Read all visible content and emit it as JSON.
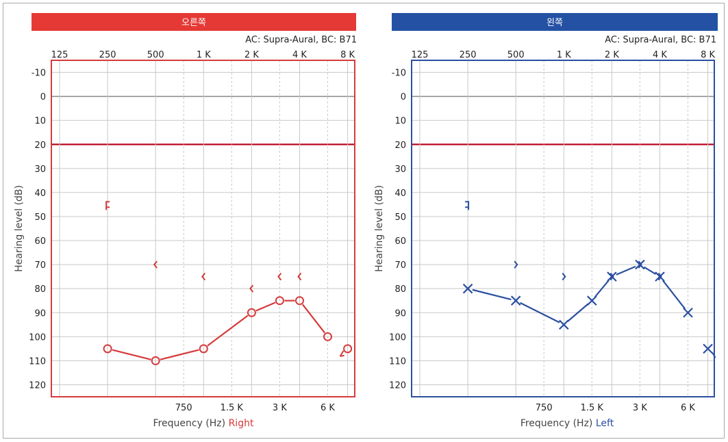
{
  "chart_data": [
    {
      "type": "line",
      "header": "오른쪽",
      "subtitle": "AC: Supra-Aural, BC: B71",
      "ylabel": "Hearing level (dB)",
      "xlabel": "Frequency (Hz)",
      "xlabel_side": "Right",
      "ylim": [
        -15,
        125
      ],
      "y_reversed": true,
      "y_ticks": [
        "-10",
        "0",
        "10",
        "20",
        "30",
        "40",
        "50",
        "60",
        "70",
        "80",
        "90",
        "100",
        "110",
        "120"
      ],
      "x_top_ticks": [
        {
          "f": 125,
          "label": "125"
        },
        {
          "f": 250,
          "label": "250"
        },
        {
          "f": 500,
          "label": "500"
        },
        {
          "f": 1000,
          "label": "1 K"
        },
        {
          "f": 2000,
          "label": "2 K"
        },
        {
          "f": 4000,
          "label": "4 K"
        },
        {
          "f": 8000,
          "label": "8 K"
        }
      ],
      "x_bottom_ticks": [
        {
          "f": 750,
          "label": "750"
        },
        {
          "f": 1500,
          "label": "1.5 K"
        },
        {
          "f": 3000,
          "label": "3 K"
        },
        {
          "f": 6000,
          "label": "6 K"
        }
      ],
      "reference_line": 20,
      "ear_color": "#d63a3a",
      "series": [
        {
          "marker": "circle",
          "points": [
            {
              "x": 250,
              "y": 105
            },
            {
              "x": 500,
              "y": 110
            },
            {
              "x": 1000,
              "y": 105
            },
            {
              "x": 2000,
              "y": 90
            },
            {
              "x": 3000,
              "y": 85
            },
            {
              "x": 4000,
              "y": 85
            },
            {
              "x": 6000,
              "y": 100
            },
            {
              "x": 8000,
              "y": 105
            }
          ],
          "no_response_at": [
            8000
          ]
        },
        {
          "marker": "bone-right",
          "points": [
            {
              "x": 250,
              "y": 45
            },
            {
              "x": 500,
              "y": 70
            },
            {
              "x": 1000,
              "y": 75
            },
            {
              "x": 2000,
              "y": 80
            },
            {
              "x": 3000,
              "y": 75
            },
            {
              "x": 4000,
              "y": 75
            }
          ]
        }
      ]
    },
    {
      "type": "line",
      "header": "왼쪽",
      "subtitle": "AC: Supra-Aural, BC: B71",
      "ylabel": "Hearing level (dB)",
      "xlabel": "Frequency (Hz)",
      "xlabel_side": "Left",
      "ylim": [
        -15,
        125
      ],
      "y_reversed": true,
      "y_ticks": [
        "-10",
        "0",
        "10",
        "20",
        "30",
        "40",
        "50",
        "60",
        "70",
        "80",
        "90",
        "100",
        "110",
        "120"
      ],
      "x_top_ticks": [
        {
          "f": 125,
          "label": "125"
        },
        {
          "f": 250,
          "label": "250"
        },
        {
          "f": 500,
          "label": "500"
        },
        {
          "f": 1000,
          "label": "1 K"
        },
        {
          "f": 2000,
          "label": "2 K"
        },
        {
          "f": 4000,
          "label": "4 K"
        },
        {
          "f": 8000,
          "label": "8 K"
        }
      ],
      "x_bottom_ticks": [
        {
          "f": 750,
          "label": "750"
        },
        {
          "f": 1500,
          "label": "1.5 K"
        },
        {
          "f": 3000,
          "label": "3 K"
        },
        {
          "f": 6000,
          "label": "6 K"
        }
      ],
      "reference_line": 20,
      "ear_color": "#2b4fa0",
      "series": [
        {
          "marker": "x",
          "points": [
            {
              "x": 250,
              "y": 80
            },
            {
              "x": 500,
              "y": 85
            },
            {
              "x": 1000,
              "y": 95
            },
            {
              "x": 1500,
              "y": 85
            },
            {
              "x": 2000,
              "y": 75
            },
            {
              "x": 3000,
              "y": 70
            },
            {
              "x": 4000,
              "y": 75
            },
            {
              "x": 6000,
              "y": 90
            },
            {
              "x": 8000,
              "y": 105
            }
          ],
          "no_response_at": [
            8000
          ]
        },
        {
          "marker": "bone-left",
          "points": [
            {
              "x": 250,
              "y": 45
            },
            {
              "x": 500,
              "y": 70
            },
            {
              "x": 1000,
              "y": 75
            },
            {
              "x": 2000,
              "y": 75
            },
            {
              "x": 3000,
              "y": 70
            },
            {
              "x": 4000,
              "y": 75
            }
          ]
        }
      ]
    }
  ],
  "colors": {
    "right_header": "#e53935",
    "left_header": "#2451a3",
    "grid": "#c8c8c8",
    "zero_line": "#888888",
    "reference_line": "#c2213a"
  }
}
